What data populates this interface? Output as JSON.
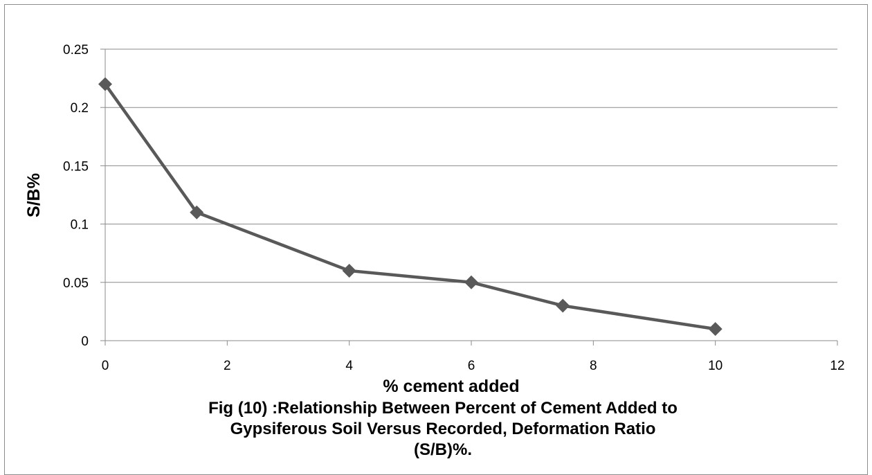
{
  "chart_data": {
    "type": "line",
    "title": "",
    "xlabel": "% cement added",
    "ylabel": "S/B%",
    "xlim": [
      0,
      12
    ],
    "ylim": [
      0,
      0.25
    ],
    "x_ticks": [
      "0",
      "2",
      "4",
      "6",
      "8",
      "10",
      "12"
    ],
    "y_ticks": [
      "0",
      "0.05",
      "0.1",
      "0.15",
      "0.2",
      "0.25"
    ],
    "grid": "horizontal",
    "marker": "diamond",
    "series": [
      {
        "x": [
          0,
          1.5,
          4,
          6,
          7.5,
          10
        ],
        "y": [
          0.22,
          0.11,
          0.06,
          0.05,
          0.03,
          0.01
        ],
        "color": "#595959"
      }
    ]
  },
  "caption": {
    "line1": "Fig (10) :Relationship Between Percent of Cement Added to",
    "line2": "Gypsiferous Soil Versus Recorded, Deformation Ratio",
    "line3": "(S/B)%."
  }
}
